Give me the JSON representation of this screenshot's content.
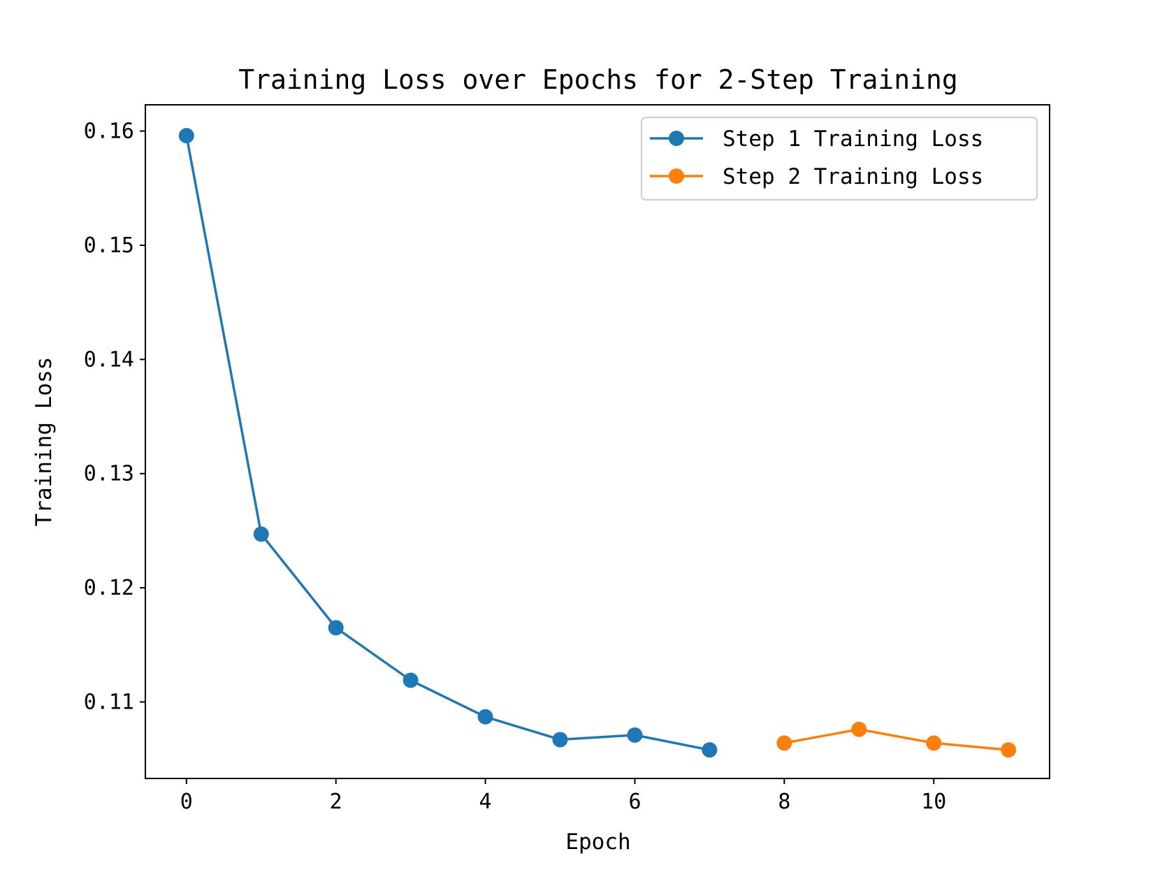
{
  "chart_data": {
    "type": "line",
    "title": "Training Loss over Epochs for 2-Step Training",
    "xlabel": "Epoch",
    "ylabel": "Training Loss",
    "xlim": [
      -0.55,
      11.55
    ],
    "ylim": [
      0.1033,
      0.1623
    ],
    "xticks": [
      0,
      2,
      4,
      6,
      8,
      10
    ],
    "xtick_labels": [
      "0",
      "2",
      "4",
      "6",
      "8",
      "10"
    ],
    "yticks": [
      0.11,
      0.12,
      0.13,
      0.14,
      0.15,
      0.16
    ],
    "ytick_labels": [
      "0.11",
      "0.12",
      "0.13",
      "0.14",
      "0.15",
      "0.16"
    ],
    "grid": false,
    "legend_position": "top-right",
    "series": [
      {
        "name": "Step 1 Training Loss",
        "color": "#1f77b4",
        "marker": "circle",
        "x": [
          0,
          1,
          2,
          3,
          4,
          5,
          6,
          7
        ],
        "y": [
          0.1596,
          0.1247,
          0.1165,
          0.1119,
          0.1087,
          0.1067,
          0.1071,
          0.1058
        ]
      },
      {
        "name": "Step 2 Training Loss",
        "color": "#ff7f0e",
        "marker": "circle",
        "x": [
          8,
          9,
          10,
          11
        ],
        "y": [
          0.1064,
          0.1076,
          0.1064,
          0.1058
        ]
      }
    ]
  }
}
